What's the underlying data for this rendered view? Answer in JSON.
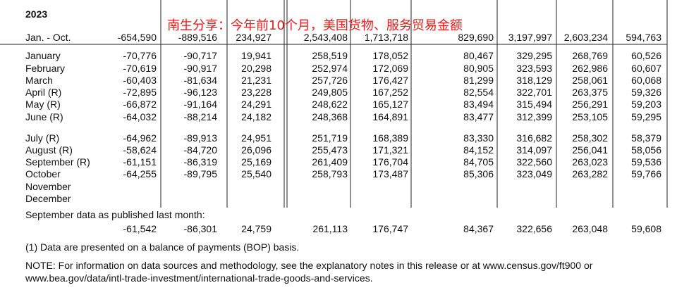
{
  "header": {
    "year": "2023",
    "title": "南生分享：今年前10个月，美国货物、服务贸易金额"
  },
  "table": {
    "rows": [
      {
        "label": "Jan. - Oct.",
        "values": [
          "-654,590",
          "-889,516",
          "234,927",
          "2,543,408",
          "1,713,718",
          "829,690",
          "3,197,997",
          "2,603,234",
          "594,763"
        ]
      },
      {
        "label": "January",
        "values": [
          "-70,776",
          "-90,717",
          "19,941",
          "258,519",
          "178,052",
          "80,467",
          "329,295",
          "268,769",
          "60,526"
        ]
      },
      {
        "label": "February",
        "values": [
          "-70,619",
          "-90,917",
          "20,298",
          "252,974",
          "172,069",
          "80,905",
          "323,593",
          "262,986",
          "60,607"
        ]
      },
      {
        "label": "March",
        "values": [
          "-60,403",
          "-81,634",
          "21,231",
          "257,726",
          "176,427",
          "81,299",
          "318,129",
          "258,061",
          "60,068"
        ]
      },
      {
        "label": "April (R)",
        "values": [
          "-72,895",
          "-96,123",
          "23,228",
          "249,805",
          "167,252",
          "82,554",
          "322,701",
          "263,375",
          "59,326"
        ]
      },
      {
        "label": "May (R)",
        "values": [
          "-66,872",
          "-91,164",
          "24,291",
          "248,622",
          "165,127",
          "83,494",
          "315,494",
          "256,291",
          "59,203"
        ]
      },
      {
        "label": "June (R)",
        "values": [
          "-64,032",
          "-88,214",
          "24,182",
          "248,368",
          "164,891",
          "83,477",
          "312,399",
          "253,105",
          "59,295"
        ]
      },
      {
        "label": "July (R)",
        "values": [
          "-64,962",
          "-89,913",
          "24,951",
          "251,719",
          "168,389",
          "83,330",
          "316,682",
          "258,302",
          "58,379"
        ]
      },
      {
        "label": "August (R)",
        "values": [
          "-58,624",
          "-84,720",
          "26,096",
          "255,473",
          "171,321",
          "84,152",
          "314,097",
          "256,041",
          "58,056"
        ]
      },
      {
        "label": "September (R)",
        "values": [
          "-61,151",
          "-86,319",
          "25,169",
          "261,409",
          "176,704",
          "84,705",
          "322,560",
          "263,023",
          "59,536"
        ]
      },
      {
        "label": "October",
        "values": [
          "-64,255",
          "-89,795",
          "25,540",
          "258,793",
          "173,487",
          "85,306",
          "323,049",
          "263,282",
          "59,766"
        ]
      },
      {
        "label": "November",
        "values": []
      },
      {
        "label": "December",
        "values": []
      }
    ]
  },
  "published": {
    "label": "September data as published last month:",
    "values": [
      "-61,542",
      "-86,301",
      "24,759",
      "261,113",
      "176,747",
      "84,367",
      "322,656",
      "263,048",
      "59,608"
    ]
  },
  "footnote": "(1) Data are presented on a balance of payments (BOP) basis.",
  "note": [
    "NOTE: For information on data sources and methodology, see the explanatory notes in this release or at www.census.gov/ft900 or",
    "www.bea.gov/data/intl-trade-investment/international-trade-goods-and-services."
  ]
}
